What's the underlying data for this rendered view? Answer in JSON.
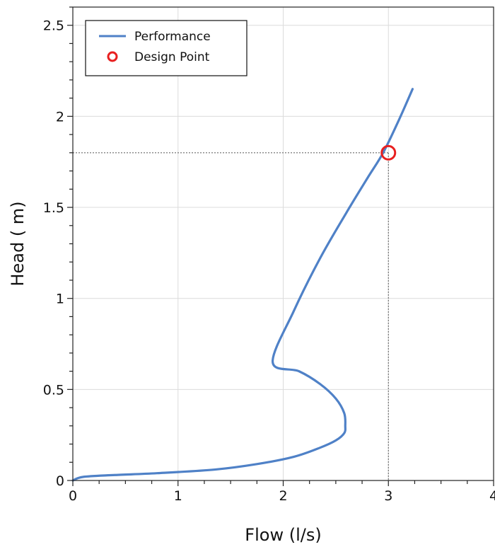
{
  "chart_data": {
    "type": "line",
    "xlabel": "Flow (l/s)",
    "ylabel": "Head ( m)",
    "xlim": [
      0,
      4
    ],
    "ylim": [
      0,
      2.6
    ],
    "x_ticks": [
      0,
      1,
      2,
      3,
      4
    ],
    "y_ticks": [
      0,
      0.5,
      1,
      1.5,
      2,
      2.5
    ],
    "x_tick_labels": [
      "0",
      "1",
      "2",
      "3",
      "4"
    ],
    "y_tick_labels": [
      "0",
      "0.5",
      "1",
      "1.5",
      "2",
      "2.5"
    ],
    "grid": true,
    "legend_position": "top-left",
    "series": [
      {
        "name": "Performance",
        "color": "#4f81c7",
        "x": [
          0.0,
          0.1,
          0.4,
          0.8,
          1.35,
          1.75,
          2.1,
          2.35,
          2.5,
          2.58,
          2.59,
          2.58,
          2.5,
          2.35,
          2.15,
          1.9,
          2.1,
          2.35,
          2.6,
          2.8,
          2.95,
          3.1,
          3.23
        ],
        "y": [
          0.0,
          0.02,
          0.03,
          0.04,
          0.06,
          0.09,
          0.13,
          0.18,
          0.22,
          0.26,
          0.3,
          0.37,
          0.45,
          0.53,
          0.6,
          0.65,
          0.93,
          1.22,
          1.47,
          1.66,
          1.8,
          1.98,
          2.15
        ]
      }
    ],
    "design_point": {
      "name": "Design Point",
      "x": 3.0,
      "y": 1.8,
      "color": "#e82020"
    }
  }
}
